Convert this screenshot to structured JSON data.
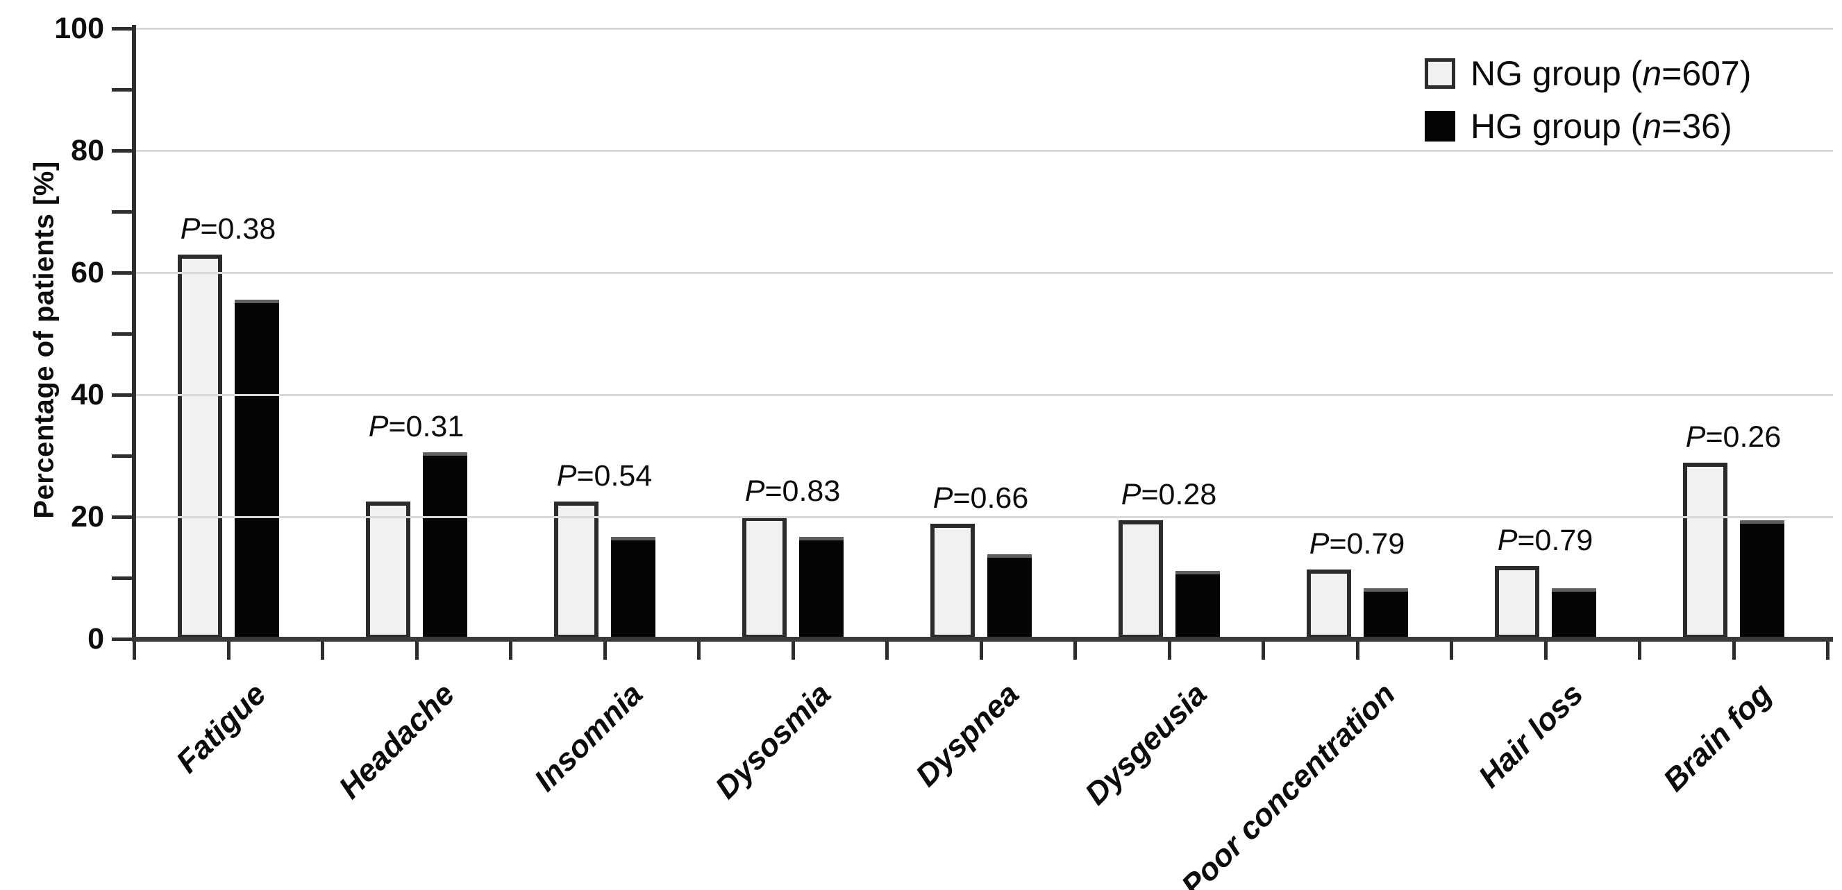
{
  "figure": {
    "background": "#ffffff",
    "text_color": "#0b0b0b",
    "grid_color": "#d9d9d9",
    "axis_color": "#2e2e2e"
  },
  "legend": {
    "items": [
      {
        "series": "NG",
        "prefix": "NG group (",
        "italic": "n",
        "suffix": "=607)",
        "swatch_fill": "#f1f1f1",
        "swatch_border": "#2b2b2b"
      },
      {
        "series": "HG",
        "prefix": "HG group (",
        "italic": "n",
        "suffix": "=36)",
        "swatch_fill": "#040404",
        "swatch_border": "#040404"
      }
    ]
  },
  "chart_data": {
    "type": "bar",
    "title": "",
    "xlabel": "",
    "ylabel": "Percentage of patients [%]",
    "ylim": [
      0,
      100
    ],
    "ytick_step": 20,
    "yminor_tick_step": 10,
    "ytick_labels": [
      "0",
      "20",
      "40",
      "60",
      "80",
      "100"
    ],
    "grid": "horizontal major gridlines at 20/40/60/80/100",
    "legend_position": "top-right",
    "bar_style": "grouped pairs, NG light gray outlined, HG solid black",
    "categories": [
      "Fatigue",
      "Headache",
      "Insomnia",
      "Dysosmia",
      "Dyspnea",
      "Dysgeusia",
      "Poor concentration",
      "Hair loss",
      "Brain fog"
    ],
    "series": [
      {
        "name": "NG group (n=607)",
        "fill": "#f1f1f1",
        "border": "#2b2b2b",
        "values": [
          62.9,
          22.5,
          22.5,
          20.0,
          18.9,
          19.4,
          11.4,
          11.9,
          28.9
        ]
      },
      {
        "name": "HG group (n=36)",
        "fill": "#050505",
        "border": "#5f5f5f",
        "values": [
          55.6,
          30.6,
          16.7,
          16.7,
          13.9,
          11.1,
          8.3,
          8.3,
          19.4
        ]
      }
    ],
    "p_values": [
      {
        "symbol": "P",
        "text": "=0.38"
      },
      {
        "symbol": "P",
        "text": "=0.31"
      },
      {
        "symbol": "P",
        "text": "=0.54"
      },
      {
        "symbol": "P",
        "text": "=0.83"
      },
      {
        "symbol": "P",
        "text": "=0.66"
      },
      {
        "symbol": "P",
        "text": "=0.28"
      },
      {
        "symbol": "P",
        "text": "=0.79"
      },
      {
        "symbol": "P",
        "text": "=0.79"
      },
      {
        "symbol": "P",
        "text": "=0.26"
      }
    ]
  }
}
